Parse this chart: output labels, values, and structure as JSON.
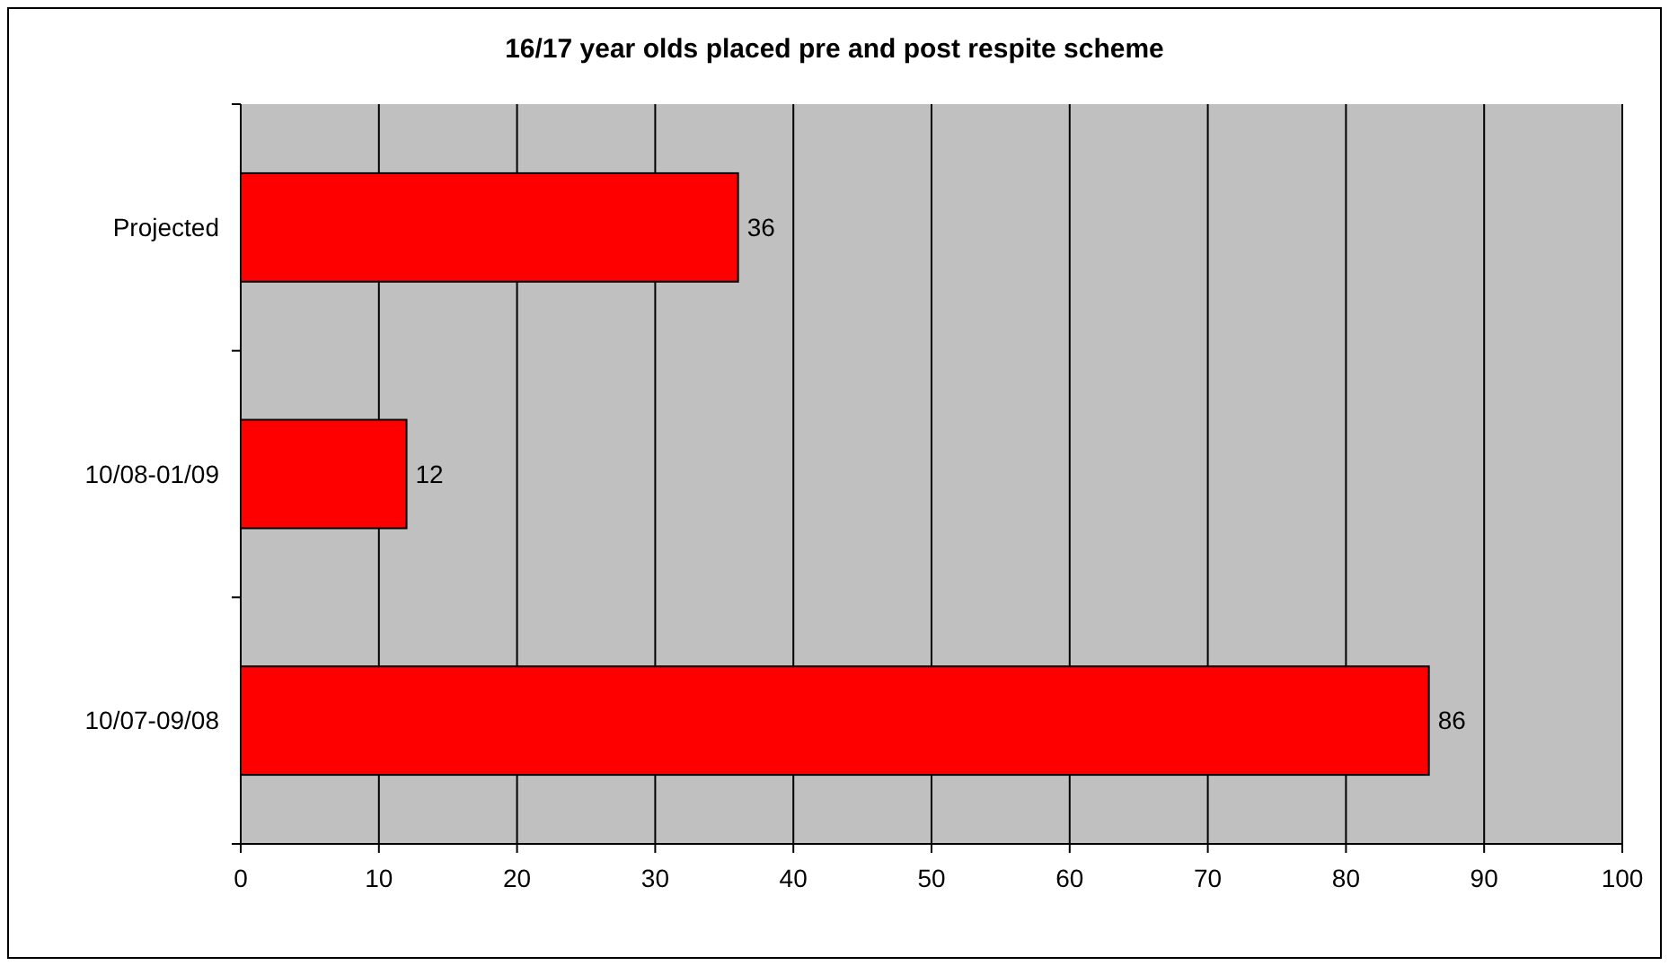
{
  "chart_data": {
    "type": "bar",
    "orientation": "horizontal",
    "title": "16/17 year olds placed pre and post respite scheme",
    "categories": [
      "Projected",
      "10/08-01/09",
      "10/07-09/08"
    ],
    "values": [
      36,
      12,
      86
    ],
    "color": "#ff0000",
    "xlim": [
      0,
      100
    ],
    "xticks": [
      0,
      10,
      20,
      30,
      40,
      50,
      60,
      70,
      80,
      90,
      100
    ],
    "grid": "x",
    "data_labels": true
  }
}
